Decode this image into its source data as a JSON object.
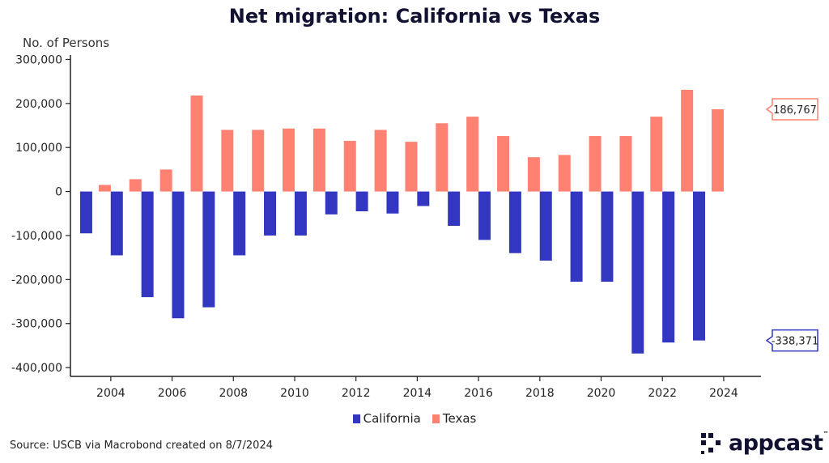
{
  "title": "Net migration: California vs Texas",
  "source": "Source: USCB via Macrobond created on 8/7/2024",
  "logo": {
    "text": "appcast",
    "tm": "™"
  },
  "colors": {
    "california": "#3236c0",
    "texas": "#fe8171",
    "axis": "#222222"
  },
  "chart_data": {
    "type": "bar",
    "title": "Net migration: California vs Texas",
    "ylabel": "No. of Persons",
    "xlabel": "",
    "ylim": [
      -420000,
      310000
    ],
    "yticks": [
      300000,
      200000,
      100000,
      0,
      -100000,
      -200000,
      -300000,
      -400000
    ],
    "ytick_labels": [
      "300,000",
      "200,000",
      "100,000",
      "0",
      "-100,000",
      "-200,000",
      "-300,000",
      "-400,000"
    ],
    "xticks": [
      2004,
      2006,
      2008,
      2010,
      2012,
      2014,
      2016,
      2018,
      2020,
      2022,
      2024
    ],
    "xtick_labels": [
      "2004",
      "2006",
      "2008",
      "2010",
      "2012",
      "2014",
      "2016",
      "2018",
      "2020",
      "2022",
      "2024"
    ],
    "categories": [
      2003,
      2004,
      2005,
      2006,
      2007,
      2008,
      2009,
      2010,
      2011,
      2012,
      2013,
      2014,
      2015,
      2016,
      2017,
      2018,
      2019,
      2020,
      2021,
      2022,
      2023
    ],
    "series": [
      {
        "name": "California",
        "values": [
          -95000,
          -145000,
          -240000,
          -288000,
          -263000,
          -145000,
          -100000,
          -100000,
          -52000,
          -45000,
          -50000,
          -33000,
          -78000,
          -110000,
          -140000,
          -157000,
          -205000,
          -205000,
          -368000,
          -343000,
          -338371
        ]
      },
      {
        "name": "Texas",
        "values": [
          15000,
          28000,
          50000,
          218000,
          140000,
          140000,
          143000,
          143000,
          115000,
          140000,
          113000,
          155000,
          170000,
          126000,
          78000,
          83000,
          126000,
          126000,
          170000,
          231000,
          186767
        ]
      }
    ],
    "legend": [
      "California",
      "Texas"
    ],
    "legend_position": "bottom-center",
    "callouts": [
      {
        "series": "Texas",
        "value": 186767,
        "label": "186,767"
      },
      {
        "series": "California",
        "value": -338371,
        "label": "-338,371"
      }
    ]
  }
}
